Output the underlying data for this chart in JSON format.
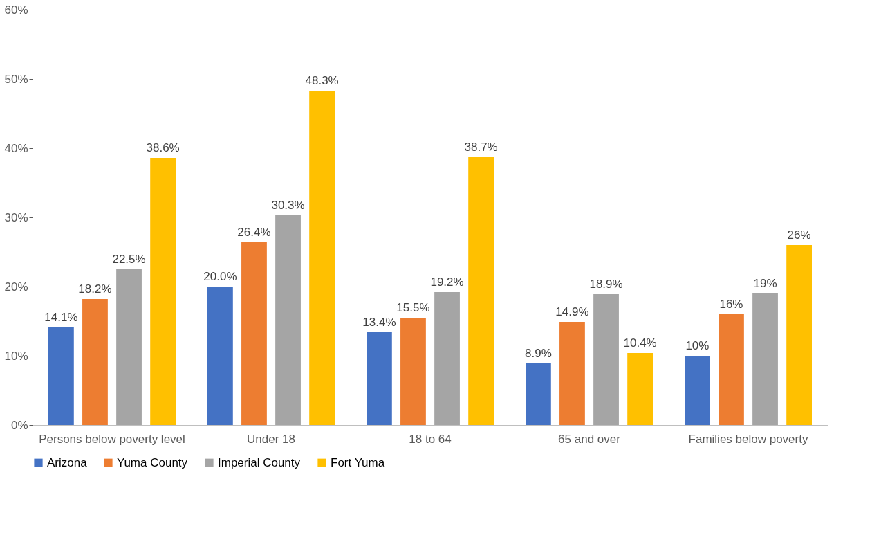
{
  "chart_data": {
    "type": "bar",
    "categories": [
      "Persons below poverty level",
      "Under 18",
      "18 to 64",
      "65 and over",
      "Families below poverty"
    ],
    "series": [
      {
        "name": "Arizona",
        "color": "#4472c4",
        "values": [
          14.1,
          20.0,
          13.4,
          8.9,
          10
        ],
        "value_labels": [
          "14.1%",
          "20.0%",
          "13.4%",
          "8.9%",
          "10%"
        ]
      },
      {
        "name": "Yuma County",
        "color": "#ed7d31",
        "values": [
          18.2,
          26.4,
          15.5,
          14.9,
          16
        ],
        "value_labels": [
          "18.2%",
          "26.4%",
          "15.5%",
          "14.9%",
          "16%"
        ]
      },
      {
        "name": "Imperial County",
        "color": "#a5a5a5",
        "values": [
          22.5,
          30.3,
          19.2,
          18.9,
          19
        ],
        "value_labels": [
          "22.5%",
          "30.3%",
          "19.2%",
          "18.9%",
          "19%"
        ]
      },
      {
        "name": "Fort Yuma",
        "color": "#ffc000",
        "values": [
          38.6,
          48.3,
          38.7,
          10.4,
          26
        ],
        "value_labels": [
          "38.6%",
          "48.3%",
          "38.7%",
          "10.4%",
          "26%"
        ]
      }
    ],
    "ylim": [
      0,
      60
    ],
    "yticks": [
      {
        "value": 0,
        "label": "0%"
      },
      {
        "value": 10,
        "label": "10%"
      },
      {
        "value": 20,
        "label": "20%"
      },
      {
        "value": 30,
        "label": "30%"
      },
      {
        "value": 40,
        "label": "40%"
      },
      {
        "value": 50,
        "label": "50%"
      },
      {
        "value": 60,
        "label": "60%"
      }
    ],
    "grid": false,
    "legend": "bottom"
  }
}
